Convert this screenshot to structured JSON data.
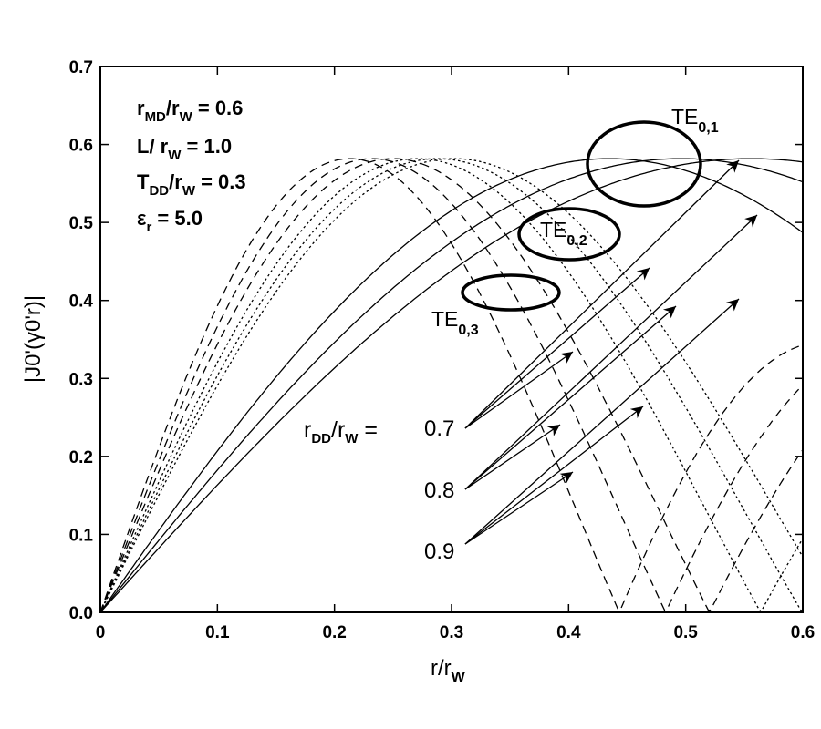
{
  "chart_data": {
    "type": "line",
    "xlim": [
      0,
      0.6
    ],
    "ylim": [
      0,
      0.7
    ],
    "x_ticks": [
      "0",
      "0.1",
      "0.2",
      "0.3",
      "0.4",
      "0.5",
      "0.6"
    ],
    "y_ticks": [
      "0.0",
      "0.1",
      "0.2",
      "0.3",
      "0.4",
      "0.5",
      "0.6",
      "0.7"
    ],
    "xlabel": {
      "base": "r/r",
      "sub": "W"
    },
    "ylabel": {
      "text": "|J0'(γ0'r)|"
    },
    "grid": false,
    "parameters": [
      {
        "id": "rmd",
        "parts": [
          [
            "r",
            ""
          ],
          [
            "MD",
            "sub"
          ],
          [
            "/r",
            ""
          ],
          [
            "W",
            "sub"
          ],
          [
            " = 0.6",
            ""
          ]
        ]
      },
      {
        "id": "l",
        "parts": [
          [
            "L/ r",
            ""
          ],
          [
            "W",
            "sub"
          ],
          [
            " = 1.0",
            ""
          ]
        ]
      },
      {
        "id": "tdd",
        "parts": [
          [
            "T",
            ""
          ],
          [
            "DD",
            "sub"
          ],
          [
            "/r",
            ""
          ],
          [
            "W",
            "sub"
          ],
          [
            " = 0.3",
            ""
          ]
        ]
      },
      {
        "id": "eps",
        "parts": [
          [
            "ε",
            ""
          ],
          [
            "r",
            "sub"
          ],
          [
            " = 5.0",
            ""
          ]
        ]
      }
    ],
    "rdd_label": {
      "main": "r",
      "sub1": "DD",
      "mid": "/r",
      "sub2": "W",
      "end": " ="
    },
    "rdd_values": [
      "0.7",
      "0.8",
      "0.9"
    ],
    "mode_groups": [
      {
        "label": "TE",
        "sub": "0,1"
      },
      {
        "label": "TE",
        "sub": "0,2"
      },
      {
        "label": "TE",
        "sub": "0,3"
      }
    ],
    "series": [
      {
        "mode": "TE0,1",
        "rdd": "0.9",
        "dash": "solid",
        "xmax": 0.556,
        "ymax": 0.5819
      },
      {
        "mode": "TE0,1",
        "rdd": "0.8",
        "dash": "solid",
        "xmax": 0.496,
        "ymax": 0.5819
      },
      {
        "mode": "TE0,1",
        "rdd": "0.7",
        "dash": "solid",
        "xmax": 0.435,
        "ymax": 0.5819
      },
      {
        "mode": "TE0,2",
        "rdd": "0.9",
        "dash": "dotted",
        "xmax": 0.302,
        "ymax": 0.5819
      },
      {
        "mode": "TE0,2",
        "rdd": "0.8",
        "dash": "dotted",
        "xmax": 0.288,
        "ymax": 0.5819
      },
      {
        "mode": "TE0,2",
        "rdd": "0.7",
        "dash": "dotted",
        "xmax": 0.271,
        "ymax": 0.5819
      },
      {
        "mode": "TE0,3",
        "rdd": "0.9",
        "dash": "dashed",
        "xmax": 0.25,
        "ymax": 0.5819
      },
      {
        "mode": "TE0,3",
        "rdd": "0.8",
        "dash": "dashed",
        "xmax": 0.232,
        "ymax": 0.5819
      },
      {
        "mode": "TE0,3",
        "rdd": "0.7",
        "dash": "dashed",
        "xmax": 0.213,
        "ymax": 0.5819
      }
    ]
  }
}
